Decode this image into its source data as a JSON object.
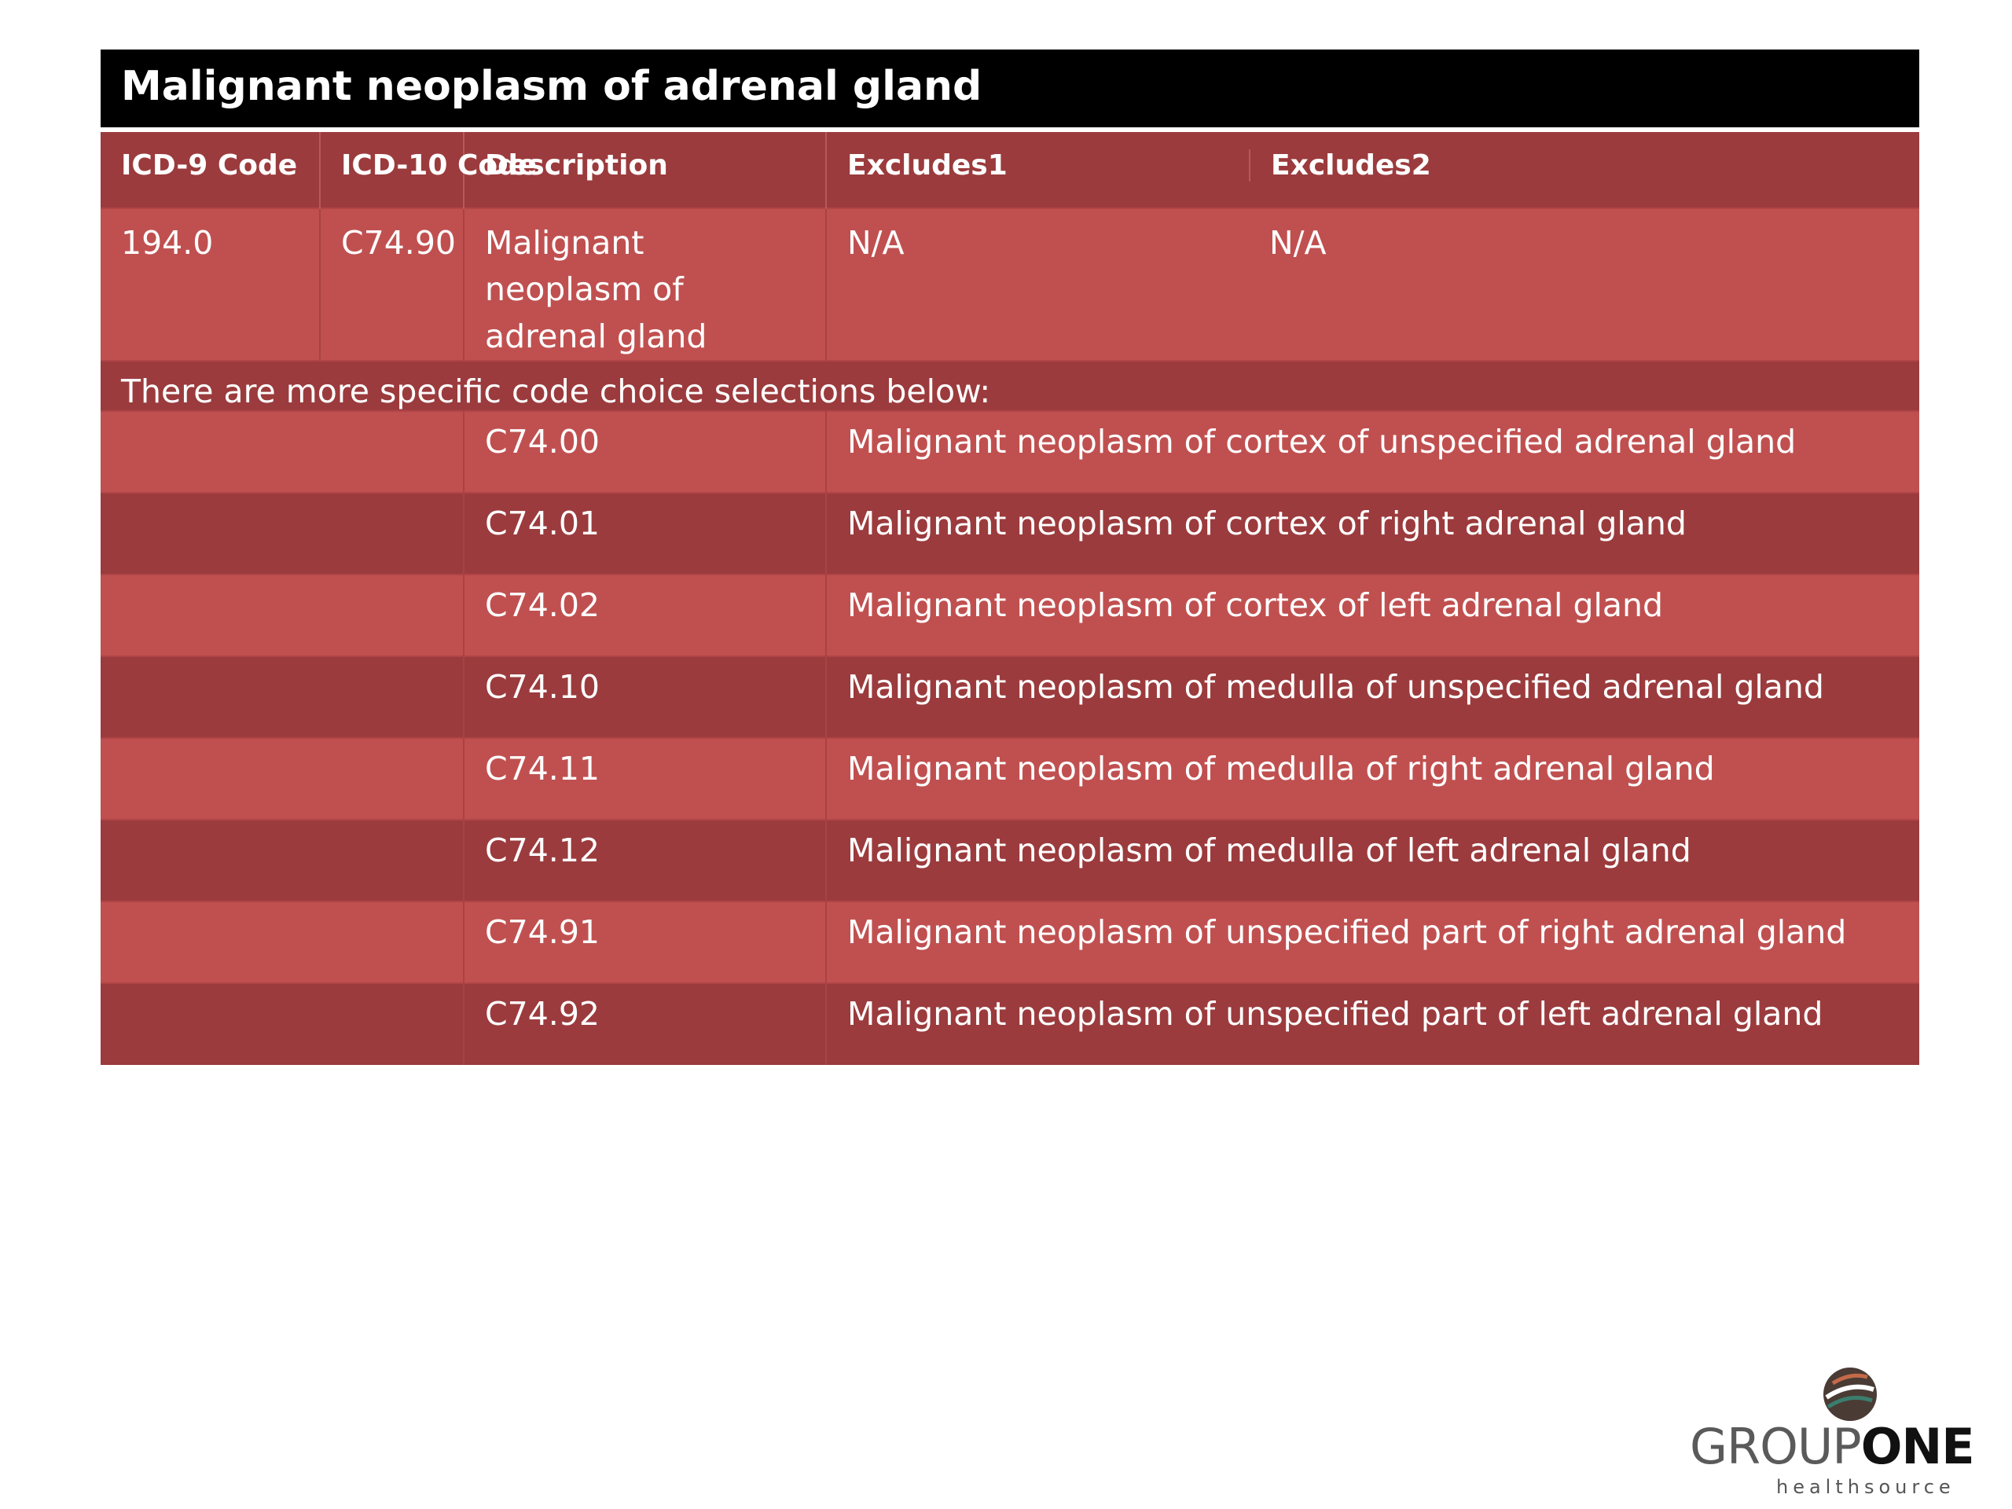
{
  "title": "Malignant neoplasm of adrenal gland",
  "headers": {
    "icd9": "ICD-9 Code",
    "icd10": "ICD-10 Code",
    "description": "Description",
    "excludes1": "Excludes1",
    "excludes2": "Excludes2"
  },
  "main_code": {
    "icd9": "194.0",
    "icd10": "C74.90",
    "description": "Malignant neoplasm of adrenal gland",
    "excludes1": "N/A",
    "excludes2": "N/A"
  },
  "note": "There are more specific code choice selections below:",
  "specific_codes": [
    {
      "code": "C74.00",
      "description": "Malignant neoplasm of cortex of unspecified adrenal gland"
    },
    {
      "code": "C74.01",
      "description": "Malignant neoplasm of cortex of right adrenal gland"
    },
    {
      "code": "C74.02",
      "description": "Malignant neoplasm of cortex of left adrenal gland"
    },
    {
      "code": "C74.10",
      "description": "Malignant neoplasm of medulla of unspecified adrenal gland"
    },
    {
      "code": "C74.11",
      "description": "Malignant neoplasm of medulla of right adrenal gland"
    },
    {
      "code": "C74.12",
      "description": "Malignant neoplasm of medulla of left adrenal gland"
    },
    {
      "code": "C74.91",
      "description": "Malignant neoplasm of unspecified part of right adrenal gland"
    },
    {
      "code": "C74.92",
      "description": "Malignant neoplasm of unspecified part of left adrenal gland"
    }
  ],
  "logo": {
    "text_part1": "GROUP",
    "text_part2": "ONE",
    "subtitle": "healthsource"
  },
  "colors": {
    "title_bg": "#000000",
    "dark_row": "#9b3b3d",
    "light_row": "#c05050",
    "text": "#ffffff"
  }
}
